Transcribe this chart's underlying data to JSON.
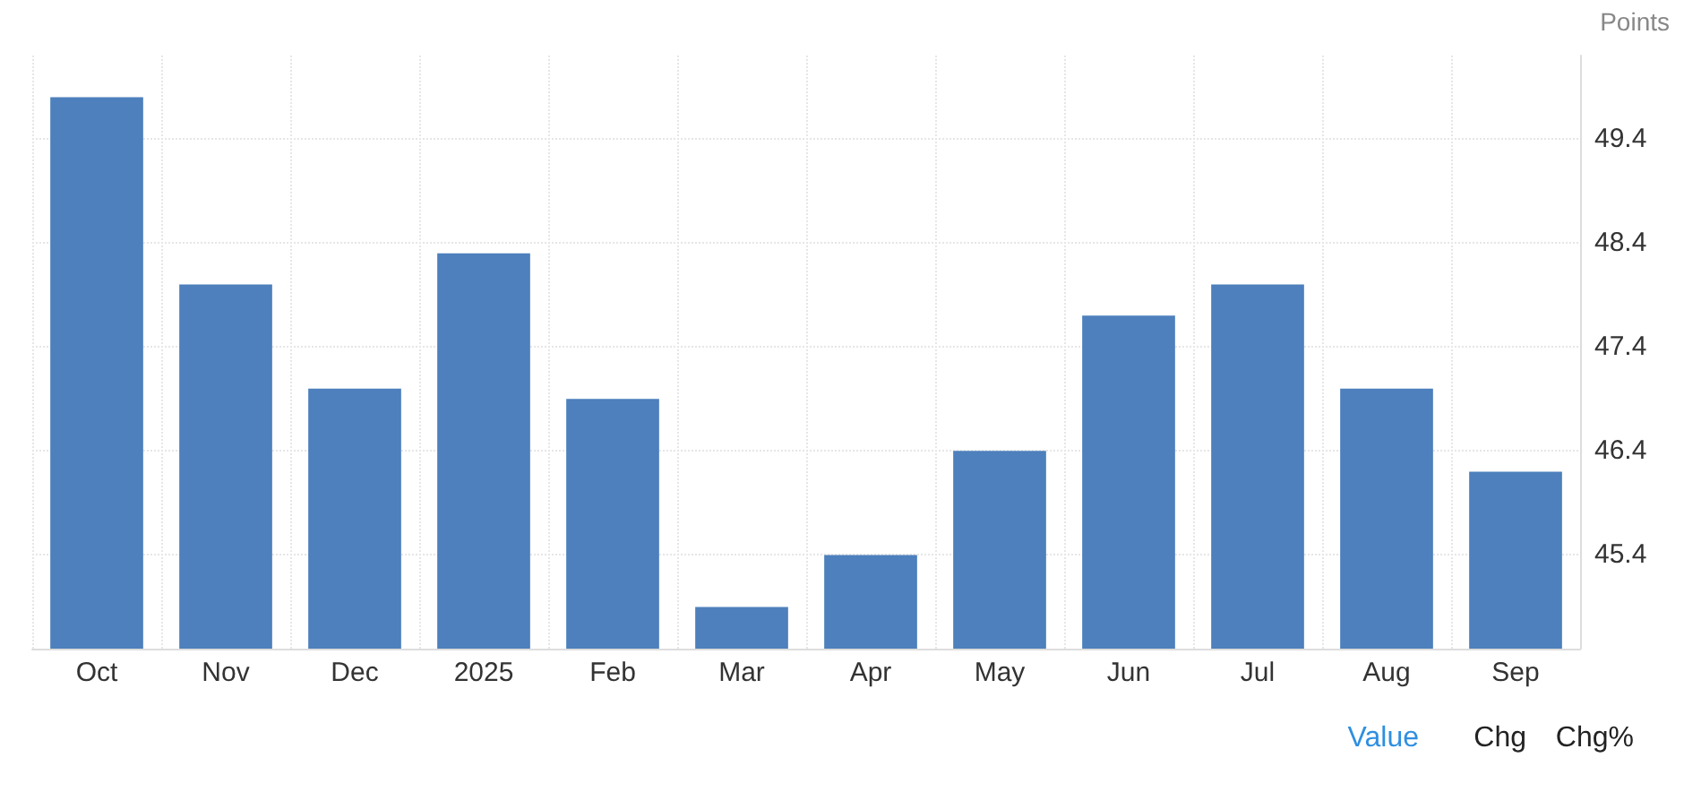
{
  "chart_data": {
    "type": "bar",
    "ylabel": "Points",
    "categories": [
      "Oct",
      "Nov",
      "Dec",
      "2025",
      "Feb",
      "Mar",
      "Apr",
      "May",
      "Jun",
      "Jul",
      "Aug",
      "Sep"
    ],
    "values": [
      49.8,
      48.0,
      47.0,
      48.3,
      46.9,
      44.9,
      45.4,
      46.4,
      47.7,
      48.0,
      47.0,
      46.2
    ],
    "color": "#4d80bc",
    "ylim": [
      44.5,
      50.2
    ],
    "yticks": [
      45.4,
      46.4,
      47.4,
      48.4,
      49.4
    ],
    "grid": true,
    "annotations": [
      "Value",
      "Chg",
      "Chg%"
    ]
  }
}
